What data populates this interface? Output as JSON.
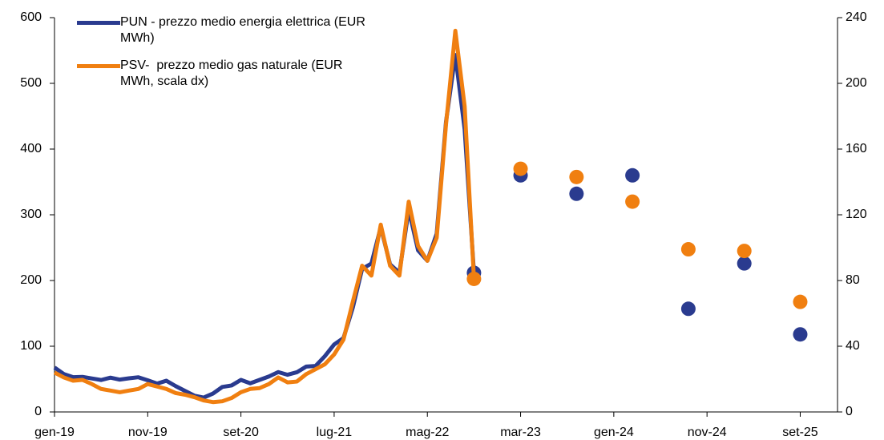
{
  "chart_data": {
    "type": "line",
    "x": [
      "gen-19",
      null,
      null,
      null,
      null,
      null,
      null,
      null,
      null,
      null,
      "nov-19",
      null,
      null,
      null,
      null,
      null,
      null,
      null,
      null,
      null,
      "set-20",
      null,
      null,
      null,
      null,
      null,
      null,
      null,
      null,
      null,
      "lug-21",
      null,
      null,
      null,
      null,
      null,
      null,
      null,
      null,
      null,
      "mag-22",
      null,
      null,
      null,
      null,
      null,
      null,
      null,
      null,
      null,
      "mar-23",
      null,
      null,
      null,
      null,
      null,
      null,
      null,
      null,
      null,
      "gen-24",
      null,
      null,
      null,
      null,
      null,
      null,
      null,
      null,
      null,
      "nov-24",
      null,
      null,
      null,
      null,
      null,
      null,
      null,
      null,
      null,
      "set-25",
      null,
      null,
      null,
      null
    ],
    "series": [
      {
        "name": "PUN - prezzo medio energia elettrica (EUR MWh)",
        "color": "#2a3b8f",
        "axis": "y",
        "values": [
          67.6,
          57.7,
          52.9,
          53.4,
          51.0,
          48.6,
          52.2,
          49.2,
          51.2,
          52.8,
          48.2,
          43.1,
          47.5,
          39.3,
          32.0,
          24.8,
          21.8,
          28.0,
          38.0,
          40.3,
          48.8,
          43.6,
          48.8,
          54.0,
          60.7,
          56.6,
          60.4,
          69.0,
          69.9,
          84.8,
          102.7,
          112.4,
          158.6,
          217.6,
          225.9,
          281.2,
          224.5,
          211.7,
          308.1,
          245.9,
          230.1,
          271.3,
          441.6,
          543.2,
          429.9,
          211.7,
          null,
          null,
          null,
          null,
          360,
          null,
          null,
          null,
          null,
          null,
          332,
          null,
          null,
          null,
          null,
          null,
          360,
          null,
          null,
          null,
          null,
          null,
          157,
          null,
          null,
          null,
          null,
          null,
          226,
          null,
          null,
          null,
          null,
          null,
          118,
          null,
          null,
          null,
          null
        ]
      },
      {
        "name": "PSV-  prezzo medio gas naturale (EUR MWh, scala dx)",
        "color": "#f07f10",
        "axis": "y2",
        "values": [
          24,
          21,
          19,
          19.5,
          17,
          14,
          13,
          12,
          13,
          14,
          17,
          15.5,
          14,
          11.5,
          10.5,
          9,
          7,
          6,
          6.5,
          8.5,
          12,
          14,
          14.5,
          17,
          21,
          18,
          18.5,
          23,
          26,
          29,
          35,
          44,
          67,
          89,
          83,
          114,
          89,
          83,
          128,
          101,
          92,
          106,
          175,
          232,
          186,
          81,
          null,
          null,
          null,
          null,
          148,
          null,
          null,
          null,
          null,
          null,
          143,
          null,
          null,
          null,
          null,
          null,
          128,
          null,
          null,
          null,
          null,
          null,
          99,
          null,
          null,
          null,
          null,
          null,
          98,
          null,
          null,
          null,
          null,
          null,
          67,
          null,
          null,
          null,
          null
        ]
      }
    ],
    "ylim": [
      0,
      600
    ],
    "yticks": [
      0,
      100,
      200,
      300,
      400,
      500,
      600
    ],
    "y2lim": [
      0,
      240
    ],
    "y2ticks": [
      0,
      40,
      80,
      120,
      160,
      200,
      240
    ],
    "legend": "top-left"
  }
}
